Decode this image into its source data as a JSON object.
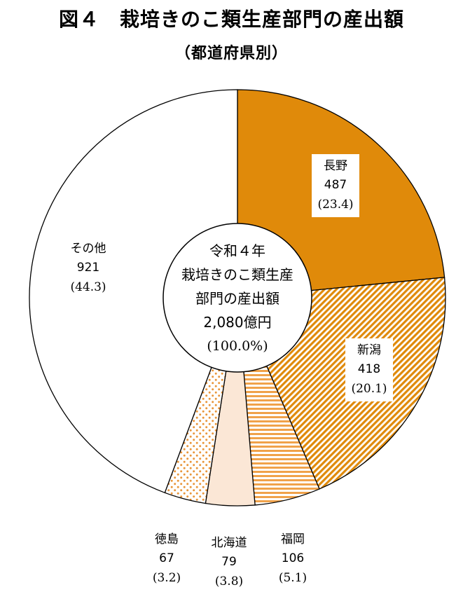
{
  "header": {
    "title": "図４　栽培きのこ類生産部門の産出額",
    "subtitle": "（都道府県別）"
  },
  "center": {
    "lines": [
      "令和４年",
      "栽培きのこ類生産",
      "部門の産出額",
      "2,080億円"
    ],
    "total_pct": "(100.0%)"
  },
  "colors": {
    "orange": "#e08a0a",
    "light_fill": "#fbe7d6",
    "white": "#ffffff",
    "outline": "#000000"
  },
  "chart_data": {
    "type": "pie",
    "title": "図４　栽培きのこ類生産部門の産出額",
    "subtitle": "（都道府県別）",
    "total": 2080,
    "slices": [
      {
        "name": "長野",
        "value": 487,
        "value_label": "487",
        "pct_label": "(23.4)",
        "fill": "solid-orange"
      },
      {
        "name": "新潟",
        "value": 418,
        "value_label": "418",
        "pct_label": "(20.1)",
        "fill": "diagonal-stripes"
      },
      {
        "name": "福岡",
        "value": 106,
        "value_label": "106",
        "pct_label": "(5.1)",
        "fill": "horizontal-stripes"
      },
      {
        "name": "北海道",
        "value": 79,
        "value_label": "79",
        "pct_label": "(3.8)",
        "fill": "light-peach"
      },
      {
        "name": "徳島",
        "value": 67,
        "value_label": "67",
        "pct_label": "(3.2)",
        "fill": "dots"
      },
      {
        "name": "その他",
        "value": 921,
        "value_label": "921",
        "pct_label": "(44.3)",
        "fill": "white"
      }
    ]
  }
}
